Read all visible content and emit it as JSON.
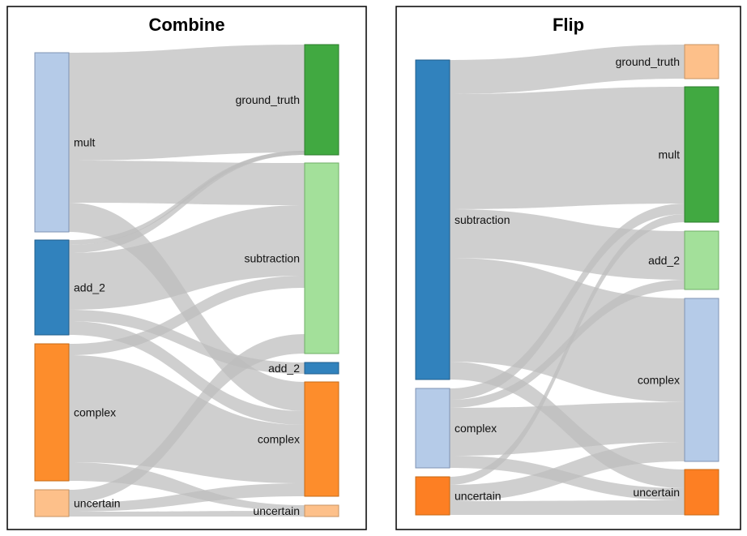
{
  "panels": [
    {
      "title": "Combine",
      "nodes": [
        {
          "id": "mult",
          "label": "mult",
          "color": "#b5cbe8",
          "stroke": "#7f93b3",
          "side": "left"
        },
        {
          "id": "add_2_l",
          "label": "add_2",
          "color": "#3182bd",
          "stroke": "#1f5d8c",
          "side": "left"
        },
        {
          "id": "complex_l",
          "label": "complex",
          "color": "#fd8d2c",
          "stroke": "#c66a16",
          "side": "left"
        },
        {
          "id": "uncertain_l",
          "label": "uncertain",
          "color": "#fdc08a",
          "stroke": "#c79363",
          "side": "left"
        },
        {
          "id": "ground_truth",
          "label": "ground_truth",
          "color": "#41a941",
          "stroke": "#2d7c2d",
          "side": "right"
        },
        {
          "id": "subtraction",
          "label": "subtraction",
          "color": "#a3e09a",
          "stroke": "#6fae67",
          "side": "right"
        },
        {
          "id": "add_2_r",
          "label": "add_2",
          "color": "#3182bd",
          "stroke": "#1f5d8c",
          "side": "right"
        },
        {
          "id": "complex_r",
          "label": "complex",
          "color": "#fd8d2c",
          "stroke": "#c66a16",
          "side": "right"
        },
        {
          "id": "uncertain_r",
          "label": "uncertain",
          "color": "#fdc08a",
          "stroke": "#c79363",
          "side": "right"
        }
      ]
    },
    {
      "title": "Flip",
      "nodes": [
        {
          "id": "subtraction",
          "label": "subtraction",
          "color": "#3182bd",
          "stroke": "#1f5d8c",
          "side": "left"
        },
        {
          "id": "complex_l",
          "label": "complex",
          "color": "#b5cbe8",
          "stroke": "#7f93b3",
          "side": "left"
        },
        {
          "id": "uncertain_l",
          "label": "uncertain",
          "color": "#fd7f23",
          "stroke": "#c66a16",
          "side": "left"
        },
        {
          "id": "ground_truth",
          "label": "ground_truth",
          "color": "#fdc08a",
          "stroke": "#c79363",
          "side": "right"
        },
        {
          "id": "mult",
          "label": "mult",
          "color": "#41a941",
          "stroke": "#2d7c2d",
          "side": "right"
        },
        {
          "id": "add_2",
          "label": "add_2",
          "color": "#a3e09a",
          "stroke": "#6fae67",
          "side": "right"
        },
        {
          "id": "complex_r",
          "label": "complex",
          "color": "#b5cbe8",
          "stroke": "#7f93b3",
          "side": "right"
        },
        {
          "id": "uncertain_r",
          "label": "uncertain",
          "color": "#fd7f23",
          "stroke": "#c66a16",
          "side": "right"
        }
      ]
    }
  ]
}
